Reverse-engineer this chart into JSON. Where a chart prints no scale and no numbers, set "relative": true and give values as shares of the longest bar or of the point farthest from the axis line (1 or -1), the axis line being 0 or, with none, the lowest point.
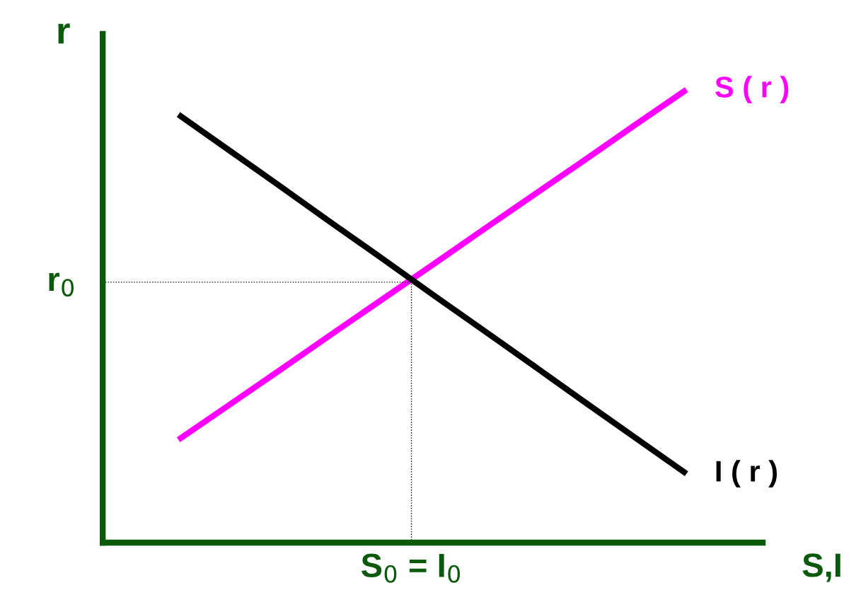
{
  "chart_data": {
    "type": "line",
    "relative": true,
    "xlabel": "S,I",
    "ylabel": "r",
    "marker": "none",
    "line_style": "solid",
    "categories": [
      null,
      null,
      null,
      null,
      null,
      null,
      null,
      null,
      null,
      null,
      null
    ],
    "series": [
      {
        "name": "S ( r )",
        "color": "#ff00ff",
        "values": [
          0.227,
          0.304,
          0.381,
          0.459,
          0.536,
          0.613,
          0.691,
          0.768,
          0.845,
          0.923,
          1
        ]
      },
      {
        "name": "I ( r )",
        "color": "#000000",
        "values": [
          0.945,
          0.866,
          0.787,
          0.707,
          0.628,
          0.548,
          0.469,
          0.39,
          0.31,
          0.231,
          0.152
        ]
      }
    ],
    "ref_lines": [
      {
        "axis": "y",
        "value": 0.575,
        "label": "r$_{0}$",
        "color": "#000000",
        "line_style": "dotted"
      }
    ],
    "annotations": [
      "S$_{0}$ = I$_{0}$"
    ]
  }
}
